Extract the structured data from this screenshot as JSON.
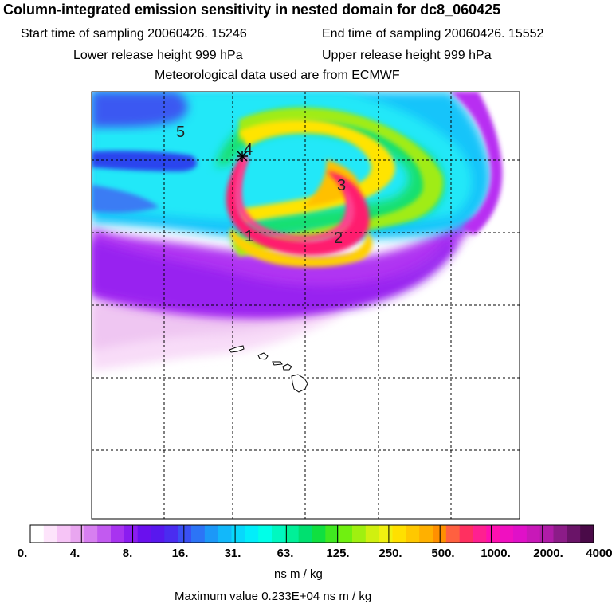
{
  "header": {
    "title": "Column-integrated emission sensitivity in nested domain for dc8_060425",
    "start_time": "Start time of sampling 20060426. 15246",
    "end_time": "End time of sampling 20060426. 15552",
    "lower_release": "Lower release height  999 hPa",
    "upper_release": "Upper release height  999 hPa",
    "met_data": "Meteorological data used are from ECMWF"
  },
  "map": {
    "trajectory_labels": [
      "1",
      "2",
      "3",
      "4",
      "5"
    ],
    "release_marker": "release-point-star"
  },
  "colorbar": {
    "tick_labels": [
      "0.",
      "4.",
      "8.",
      "16.",
      "31.",
      "63.",
      "125.",
      "250.",
      "500.",
      "1000.",
      "2000.",
      "4000."
    ],
    "colors": [
      "#ffffff",
      "#fde4fb",
      "#f6c4f6",
      "#e9a6f0",
      "#d77ff0",
      "#c25af0",
      "#a833f0",
      "#8b1cf0",
      "#6a10ee",
      "#5818ee",
      "#4a2cf0",
      "#3a50f4",
      "#2c74f6",
      "#1c98f8",
      "#12b8fa",
      "#08d8fc",
      "#02eefa",
      "#00ffe8",
      "#00f8c0",
      "#00f098",
      "#00e070",
      "#10e040",
      "#40e820",
      "#70f010",
      "#a0f010",
      "#d0f010",
      "#f0f010",
      "#ffe000",
      "#ffc800",
      "#ffb000",
      "#ff9000",
      "#ff6040",
      "#ff3060",
      "#ff2090",
      "#ff10b0",
      "#f010c0",
      "#e010c8",
      "#c818b8",
      "#b01ca8",
      "#8c1c88",
      "#6a1468",
      "#4a0a48"
    ],
    "units": "ns m / kg",
    "max_value": "Maximum value  0.233E+04 ns m / kg"
  },
  "colors": {
    "plume_core": "#ff1a6e",
    "plume_outer": "#ffd400",
    "background_low": "#a020f0"
  }
}
